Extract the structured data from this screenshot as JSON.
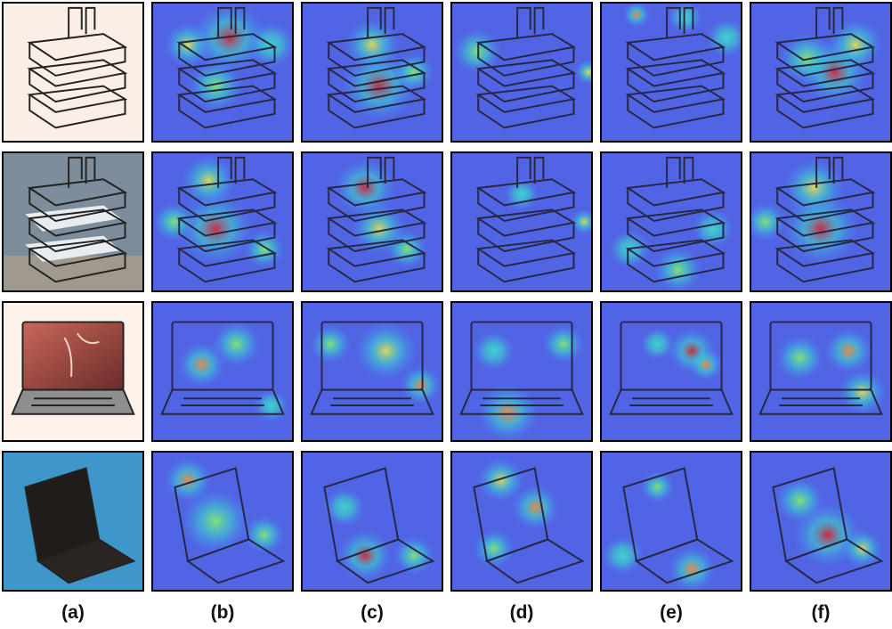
{
  "column_labels": [
    "(a)",
    "(b)",
    "(c)",
    "(d)",
    "(e)",
    "(f)"
  ],
  "rows": [
    {
      "subject": "letter-tray-mesh",
      "kind": "tray",
      "photo_bg": "#fbeee6"
    },
    {
      "subject": "letter-tray-wire",
      "kind": "tray2",
      "photo_bg": "#7d8d9c"
    },
    {
      "subject": "laptop-product-shot",
      "kind": "laptop",
      "photo_bg": "#fdf1ea"
    },
    {
      "subject": "laptop-on-table",
      "kind": "laptop2",
      "photo_bg": "#3e97c8"
    }
  ],
  "heatmap_palette": [
    "#3a3fd8",
    "#3d8bff",
    "#35e0c8",
    "#8af25a",
    "#f7e53a",
    "#ff8a24",
    "#e01a1a"
  ],
  "hotspots": [
    [
      [],
      [
        [
          0.55,
          0.25,
          0.55,
          "#e01a1a"
        ],
        [
          0.25,
          0.3,
          0.35,
          "#f7e53a"
        ],
        [
          0.45,
          0.6,
          0.4,
          "#8af25a"
        ],
        [
          0.85,
          0.3,
          0.35,
          "#35e0c8"
        ]
      ],
      [
        [
          0.55,
          0.6,
          0.55,
          "#e01a1a"
        ],
        [
          0.5,
          0.3,
          0.4,
          "#f7e53a"
        ],
        [
          0.8,
          0.5,
          0.3,
          "#8af25a"
        ]
      ],
      [
        [
          0.18,
          0.35,
          0.35,
          "#8af25a"
        ],
        [
          0.98,
          0.5,
          0.2,
          "#f7e53a"
        ]
      ],
      [
        [
          0.25,
          0.08,
          0.2,
          "#ff8a24"
        ],
        [
          0.6,
          0.1,
          0.25,
          "#35e0c8"
        ],
        [
          0.9,
          0.25,
          0.3,
          "#35e0c8"
        ]
      ],
      [
        [
          0.6,
          0.5,
          0.5,
          "#e01a1a"
        ],
        [
          0.75,
          0.3,
          0.4,
          "#f7e53a"
        ],
        [
          0.4,
          0.4,
          0.4,
          "#8af25a"
        ]
      ]
    ],
    [
      [],
      [
        [
          0.45,
          0.55,
          0.55,
          "#e01a1a"
        ],
        [
          0.4,
          0.2,
          0.4,
          "#f7e53a"
        ],
        [
          0.15,
          0.5,
          0.3,
          "#8af25a"
        ],
        [
          0.8,
          0.7,
          0.3,
          "#8af25a"
        ]
      ],
      [
        [
          0.45,
          0.25,
          0.45,
          "#e01a1a"
        ],
        [
          0.55,
          0.55,
          0.4,
          "#f7e53a"
        ],
        [
          0.75,
          0.7,
          0.3,
          "#8af25a"
        ]
      ],
      [
        [
          0.5,
          0.3,
          0.25,
          "#35e0c8"
        ],
        [
          0.95,
          0.5,
          0.2,
          "#f7e53a"
        ]
      ],
      [
        [
          0.2,
          0.7,
          0.3,
          "#35e0c8"
        ],
        [
          0.55,
          0.85,
          0.35,
          "#8af25a"
        ],
        [
          0.8,
          0.55,
          0.3,
          "#35e0c8"
        ]
      ],
      [
        [
          0.5,
          0.55,
          0.55,
          "#e01a1a"
        ],
        [
          0.45,
          0.25,
          0.45,
          "#f7e53a"
        ],
        [
          0.1,
          0.5,
          0.3,
          "#8af25a"
        ]
      ]
    ],
    [
      [],
      [
        [
          0.35,
          0.45,
          0.35,
          "#ff8a24"
        ],
        [
          0.6,
          0.3,
          0.35,
          "#8af25a"
        ],
        [
          0.85,
          0.75,
          0.25,
          "#35e0c8"
        ]
      ],
      [
        [
          0.6,
          0.35,
          0.45,
          "#f7e53a"
        ],
        [
          0.85,
          0.6,
          0.3,
          "#ff8a24"
        ],
        [
          0.2,
          0.3,
          0.3,
          "#8af25a"
        ]
      ],
      [
        [
          0.4,
          0.8,
          0.45,
          "#ff8a24"
        ],
        [
          0.8,
          0.3,
          0.3,
          "#8af25a"
        ],
        [
          0.3,
          0.35,
          0.3,
          "#35e0c8"
        ]
      ],
      [
        [
          0.65,
          0.35,
          0.35,
          "#e01a1a"
        ],
        [
          0.75,
          0.45,
          0.25,
          "#ff8a24"
        ],
        [
          0.4,
          0.3,
          0.25,
          "#35e0c8"
        ]
      ],
      [
        [
          0.7,
          0.35,
          0.35,
          "#ff8a24"
        ],
        [
          0.8,
          0.65,
          0.35,
          "#f7e53a"
        ],
        [
          0.35,
          0.4,
          0.35,
          "#8af25a"
        ]
      ]
    ],
    [
      [],
      [
        [
          0.25,
          0.2,
          0.35,
          "#ff8a24"
        ],
        [
          0.45,
          0.5,
          0.5,
          "#8af25a"
        ],
        [
          0.8,
          0.6,
          0.3,
          "#8af25a"
        ]
      ],
      [
        [
          0.45,
          0.75,
          0.4,
          "#e01a1a"
        ],
        [
          0.3,
          0.4,
          0.3,
          "#35e0c8"
        ],
        [
          0.8,
          0.75,
          0.3,
          "#8af25a"
        ]
      ],
      [
        [
          0.6,
          0.4,
          0.35,
          "#ff8a24"
        ],
        [
          0.35,
          0.2,
          0.35,
          "#f7e53a"
        ],
        [
          0.3,
          0.7,
          0.3,
          "#8af25a"
        ]
      ],
      [
        [
          0.4,
          0.25,
          0.25,
          "#8af25a"
        ],
        [
          0.65,
          0.85,
          0.35,
          "#ff8a24"
        ],
        [
          0.15,
          0.75,
          0.3,
          "#35e0c8"
        ]
      ],
      [
        [
          0.55,
          0.6,
          0.5,
          "#e01a1a"
        ],
        [
          0.35,
          0.35,
          0.35,
          "#8af25a"
        ],
        [
          0.8,
          0.7,
          0.3,
          "#f7e53a"
        ]
      ]
    ]
  ]
}
